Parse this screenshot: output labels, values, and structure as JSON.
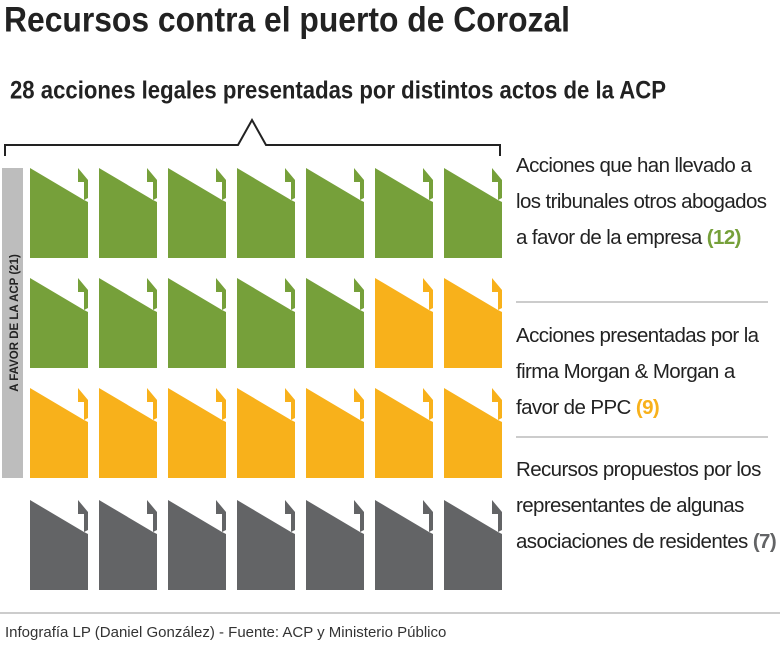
{
  "chart_data": {
    "type": "pictogram",
    "title": "Recursos contra el puerto de Corozal",
    "subtitle": "28 acciones legales presentadas por distintos actos de la ACP",
    "group_label": "A FAVOR DE LA ACP (21)",
    "categories": [
      "Acciones que han llevado a los tribunales otros abogados a favor de la empresa",
      "Acciones presentadas por la firma Morgan & Morgan a favor de PPC",
      "Recursos propuestos por los representantes de algunas asociaciones de residentes"
    ],
    "values": [
      12,
      9,
      7
    ],
    "value_labels": [
      "(12)",
      "(9)",
      "(7)"
    ],
    "colors": [
      "#76a03a",
      "#f8b11b",
      "#636466"
    ],
    "source": "Infografía LP (Daniel González) - Fuente: ACP y Ministerio Público"
  }
}
